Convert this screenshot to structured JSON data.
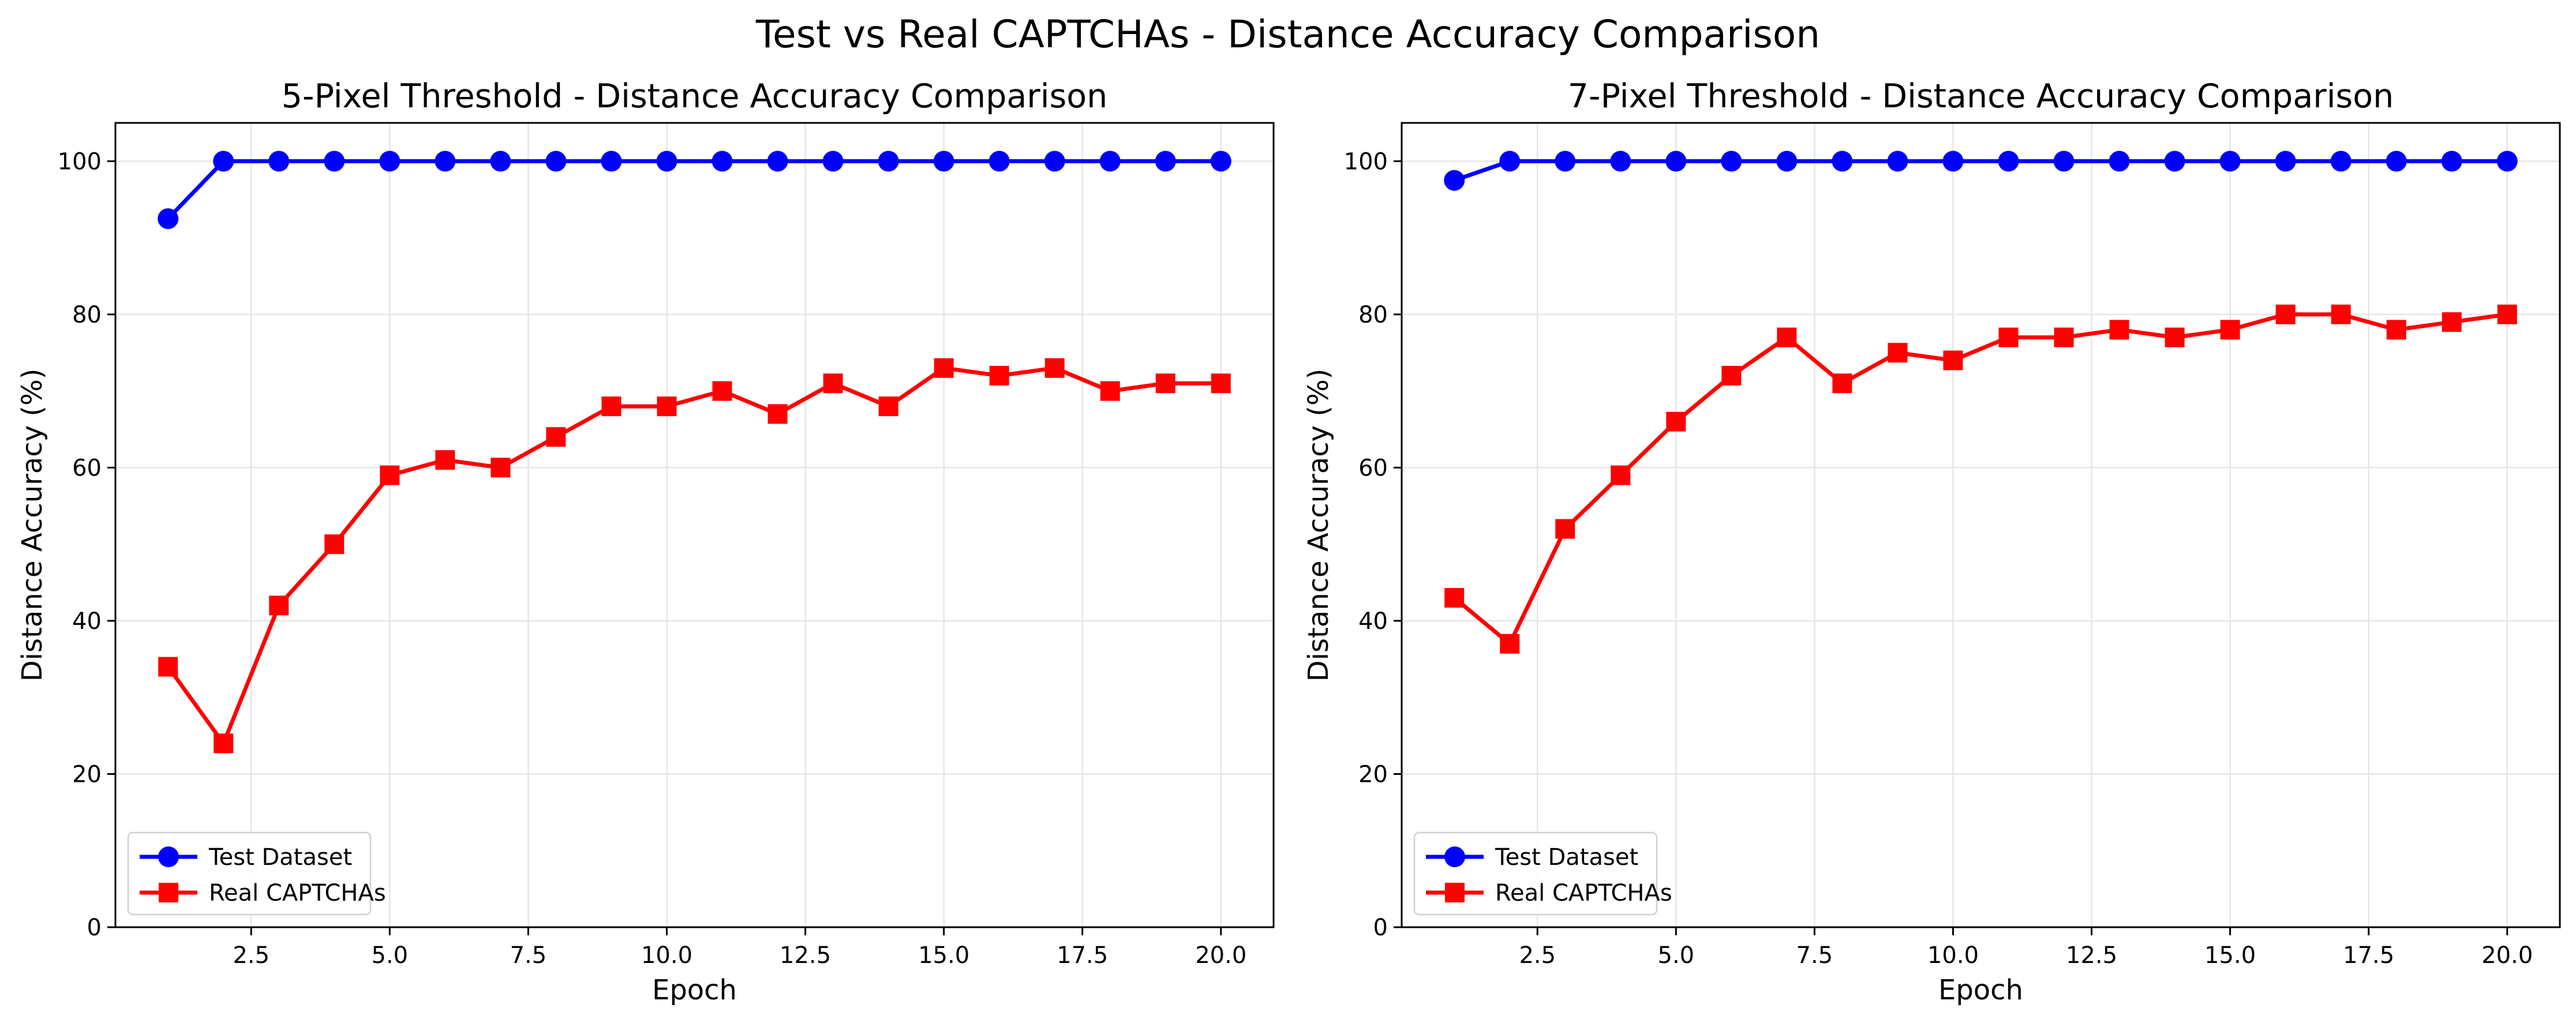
{
  "figure": {
    "title": "Test vs Real CAPTCHAs - Distance Accuracy Comparison"
  },
  "colors": {
    "test": "#0000ff",
    "real": "#ff0000",
    "grid": "#e6e6e6",
    "axis": "#000000"
  },
  "chart_data": [
    {
      "type": "line",
      "title": "5-Pixel Threshold - Distance Accuracy Comparison",
      "xlabel": "Epoch",
      "ylabel": "Distance Accuracy (%)",
      "xlim": [
        0.05,
        20.95
      ],
      "ylim": [
        0,
        105
      ],
      "xticks": [
        2.5,
        5.0,
        7.5,
        10.0,
        12.5,
        15.0,
        17.5,
        20.0
      ],
      "xtick_labels": [
        "2.5",
        "5.0",
        "7.5",
        "10.0",
        "12.5",
        "15.0",
        "17.5",
        "20.0"
      ],
      "yticks": [
        0,
        20,
        40,
        60,
        80,
        100
      ],
      "ytick_labels": [
        "0",
        "20",
        "40",
        "60",
        "80",
        "100"
      ],
      "grid": true,
      "legend_position": "lower-left",
      "x": [
        1,
        2,
        3,
        4,
        5,
        6,
        7,
        8,
        9,
        10,
        11,
        12,
        13,
        14,
        15,
        16,
        17,
        18,
        19,
        20
      ],
      "series": [
        {
          "name": "Test Dataset",
          "marker": "circle",
          "color": "#0000ff",
          "values": [
            92.5,
            100,
            100,
            100,
            100,
            100,
            100,
            100,
            100,
            100,
            100,
            100,
            100,
            100,
            100,
            100,
            100,
            100,
            100,
            100
          ]
        },
        {
          "name": "Real CAPTCHAs",
          "marker": "square",
          "color": "#ff0000",
          "values": [
            34,
            24,
            42,
            50,
            59,
            61,
            60,
            64,
            68,
            68,
            70,
            67,
            71,
            68,
            73,
            72,
            73,
            70,
            71,
            71
          ]
        }
      ]
    },
    {
      "type": "line",
      "title": "7-Pixel Threshold - Distance Accuracy Comparison",
      "xlabel": "Epoch",
      "ylabel": "Distance Accuracy (%)",
      "xlim": [
        0.05,
        20.95
      ],
      "ylim": [
        0,
        105
      ],
      "xticks": [
        2.5,
        5.0,
        7.5,
        10.0,
        12.5,
        15.0,
        17.5,
        20.0
      ],
      "xtick_labels": [
        "2.5",
        "5.0",
        "7.5",
        "10.0",
        "12.5",
        "15.0",
        "17.5",
        "20.0"
      ],
      "yticks": [
        0,
        20,
        40,
        60,
        80,
        100
      ],
      "ytick_labels": [
        "0",
        "20",
        "40",
        "60",
        "80",
        "100"
      ],
      "grid": true,
      "legend_position": "lower-left",
      "x": [
        1,
        2,
        3,
        4,
        5,
        6,
        7,
        8,
        9,
        10,
        11,
        12,
        13,
        14,
        15,
        16,
        17,
        18,
        19,
        20
      ],
      "series": [
        {
          "name": "Test Dataset",
          "marker": "circle",
          "color": "#0000ff",
          "values": [
            97.5,
            100,
            100,
            100,
            100,
            100,
            100,
            100,
            100,
            100,
            100,
            100,
            100,
            100,
            100,
            100,
            100,
            100,
            100,
            100
          ]
        },
        {
          "name": "Real CAPTCHAs",
          "marker": "square",
          "color": "#ff0000",
          "values": [
            43,
            37,
            52,
            59,
            66,
            72,
            77,
            71,
            75,
            74,
            77,
            77,
            78,
            77,
            78,
            80,
            80,
            78,
            79,
            80
          ]
        }
      ]
    }
  ]
}
